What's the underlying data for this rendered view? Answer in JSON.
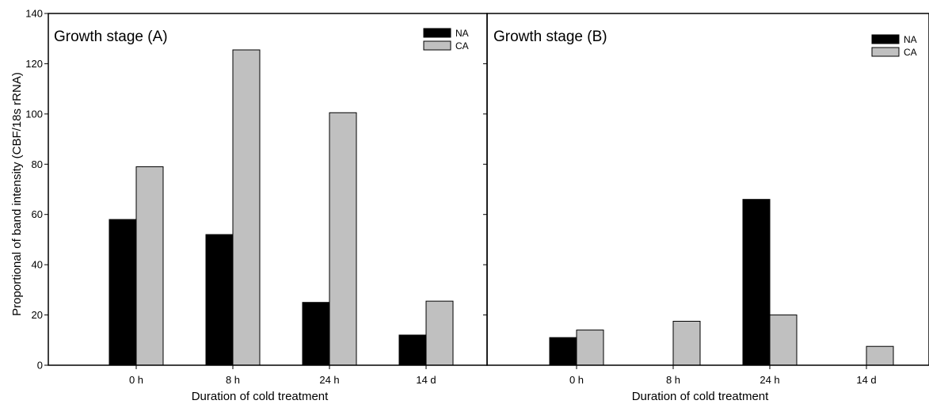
{
  "chart_data": [
    {
      "type": "bar",
      "title": "Growth stage (A)",
      "xlabel": "Duration of cold treatment",
      "ylabel": "Proportional of band intensity (CBF/18s rRNA)",
      "ylim": [
        0,
        140
      ],
      "yticks": [
        "0",
        "20",
        "40",
        "60",
        "80",
        "100",
        "120",
        "140"
      ],
      "categories": [
        "0 h",
        "8 h",
        "24 h",
        "14 d"
      ],
      "series": [
        {
          "name": "NA",
          "color": "#000000",
          "values": [
            58,
            52,
            25,
            12
          ]
        },
        {
          "name": "CA",
          "color": "#c0c0c0",
          "values": [
            79,
            125.5,
            100.5,
            25.5
          ]
        }
      ],
      "legend": "top-right",
      "grid": false
    },
    {
      "type": "bar",
      "title": "Growth stage (B)",
      "xlabel": "Duration of cold treatment",
      "ylabel": "",
      "ylim": [
        0,
        140
      ],
      "categories": [
        "0 h",
        "8 h",
        "24 h",
        "14 d"
      ],
      "series": [
        {
          "name": "NA",
          "color": "#000000",
          "values": [
            11,
            0,
            66,
            0
          ]
        },
        {
          "name": "CA",
          "color": "#c0c0c0",
          "values": [
            14,
            17.5,
            20,
            7.5
          ]
        }
      ],
      "legend": "top-right",
      "grid": false
    }
  ]
}
